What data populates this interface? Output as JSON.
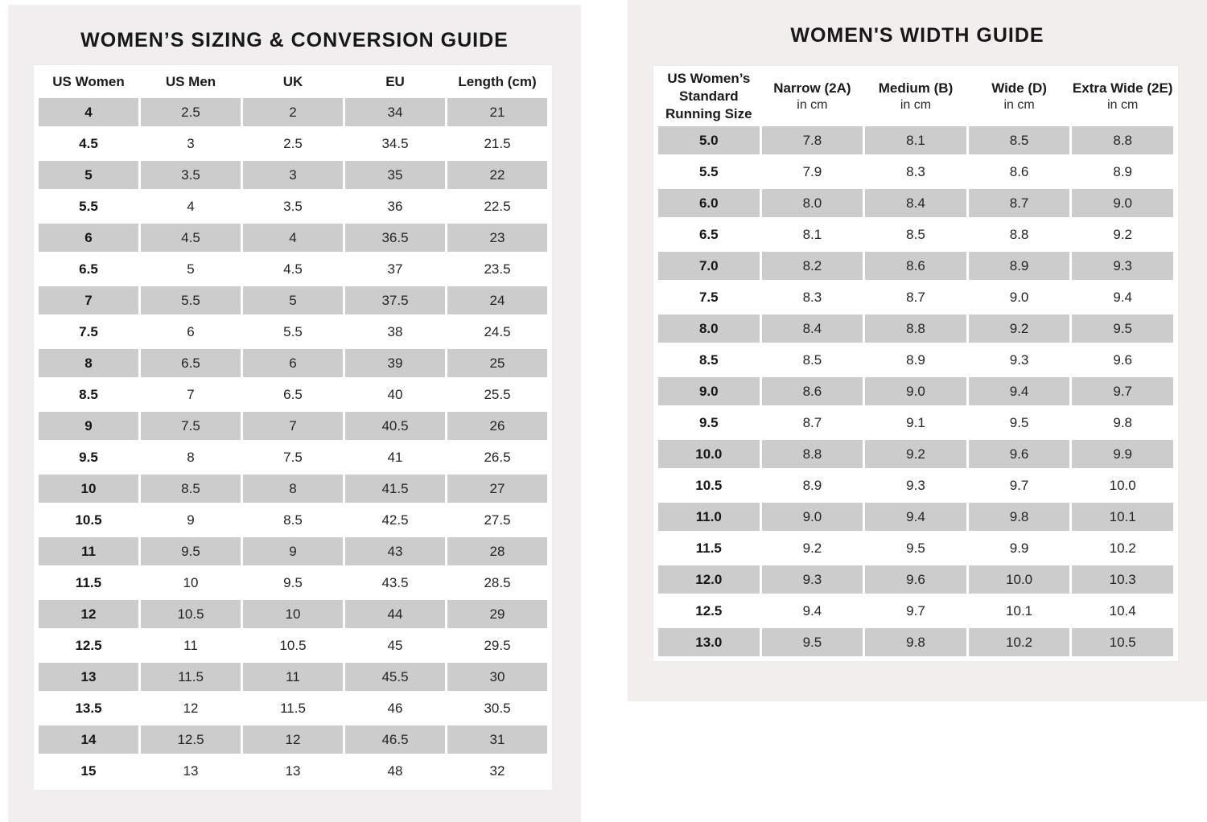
{
  "left_panel": {
    "title": "WOMEN’S SIZING & CONVERSION GUIDE",
    "background": "#f1eeef",
    "table": {
      "row_shade_color": "#cccccc",
      "headers": [
        "US Women",
        "US Men",
        "UK",
        "EU",
        "Length (cm)"
      ],
      "rows": [
        [
          "4",
          "2.5",
          "2",
          "34",
          "21"
        ],
        [
          "4.5",
          "3",
          "2.5",
          "34.5",
          "21.5"
        ],
        [
          "5",
          "3.5",
          "3",
          "35",
          "22"
        ],
        [
          "5.5",
          "4",
          "3.5",
          "36",
          "22.5"
        ],
        [
          "6",
          "4.5",
          "4",
          "36.5",
          "23"
        ],
        [
          "6.5",
          "5",
          "4.5",
          "37",
          "23.5"
        ],
        [
          "7",
          "5.5",
          "5",
          "37.5",
          "24"
        ],
        [
          "7.5",
          "6",
          "5.5",
          "38",
          "24.5"
        ],
        [
          "8",
          "6.5",
          "6",
          "39",
          "25"
        ],
        [
          "8.5",
          "7",
          "6.5",
          "40",
          "25.5"
        ],
        [
          "9",
          "7.5",
          "7",
          "40.5",
          "26"
        ],
        [
          "9.5",
          "8",
          "7.5",
          "41",
          "26.5"
        ],
        [
          "10",
          "8.5",
          "8",
          "41.5",
          "27"
        ],
        [
          "10.5",
          "9",
          "8.5",
          "42.5",
          "27.5"
        ],
        [
          "11",
          "9.5",
          "9",
          "43",
          "28"
        ],
        [
          "11.5",
          "10",
          "9.5",
          "43.5",
          "28.5"
        ],
        [
          "12",
          "10.5",
          "10",
          "44",
          "29"
        ],
        [
          "12.5",
          "11",
          "10.5",
          "45",
          "29.5"
        ],
        [
          "13",
          "11.5",
          "11",
          "45.5",
          "30"
        ],
        [
          "13.5",
          "12",
          "11.5",
          "46",
          "30.5"
        ],
        [
          "14",
          "12.5",
          "12",
          "46.5",
          "31"
        ],
        [
          "15",
          "13",
          "13",
          "48",
          "32"
        ]
      ]
    }
  },
  "right_panel": {
    "title": "WOMEN'S WIDTH GUIDE",
    "background": "#f2eeed",
    "table": {
      "row_shade_color": "#cccccc",
      "headers": [
        {
          "main": "US Women’s\nStandard\nRunning Size",
          "sub": ""
        },
        {
          "main": "Narrow (2A)",
          "sub": "in cm"
        },
        {
          "main": "Medium (B)",
          "sub": "in cm"
        },
        {
          "main": "Wide (D)",
          "sub": "in cm"
        },
        {
          "main": "Extra Wide (2E)",
          "sub": "in cm"
        }
      ],
      "rows": [
        [
          "5.0",
          "7.8",
          "8.1",
          "8.5",
          "8.8"
        ],
        [
          "5.5",
          "7.9",
          "8.3",
          "8.6",
          "8.9"
        ],
        [
          "6.0",
          "8.0",
          "8.4",
          "8.7",
          "9.0"
        ],
        [
          "6.5",
          "8.1",
          "8.5",
          "8.8",
          "9.2"
        ],
        [
          "7.0",
          "8.2",
          "8.6",
          "8.9",
          "9.3"
        ],
        [
          "7.5",
          "8.3",
          "8.7",
          "9.0",
          "9.4"
        ],
        [
          "8.0",
          "8.4",
          "8.8",
          "9.2",
          "9.5"
        ],
        [
          "8.5",
          "8.5",
          "8.9",
          "9.3",
          "9.6"
        ],
        [
          "9.0",
          "8.6",
          "9.0",
          "9.4",
          "9.7"
        ],
        [
          "9.5",
          "8.7",
          "9.1",
          "9.5",
          "9.8"
        ],
        [
          "10.0",
          "8.8",
          "9.2",
          "9.6",
          "9.9"
        ],
        [
          "10.5",
          "8.9",
          "9.3",
          "9.7",
          "10.0"
        ],
        [
          "11.0",
          "9.0",
          "9.4",
          "9.8",
          "10.1"
        ],
        [
          "11.5",
          "9.2",
          "9.5",
          "9.9",
          "10.2"
        ],
        [
          "12.0",
          "9.3",
          "9.6",
          "10.0",
          "10.3"
        ],
        [
          "12.5",
          "9.4",
          "9.7",
          "10.1",
          "10.4"
        ],
        [
          "13.0",
          "9.5",
          "9.8",
          "10.2",
          "10.5"
        ]
      ]
    }
  }
}
